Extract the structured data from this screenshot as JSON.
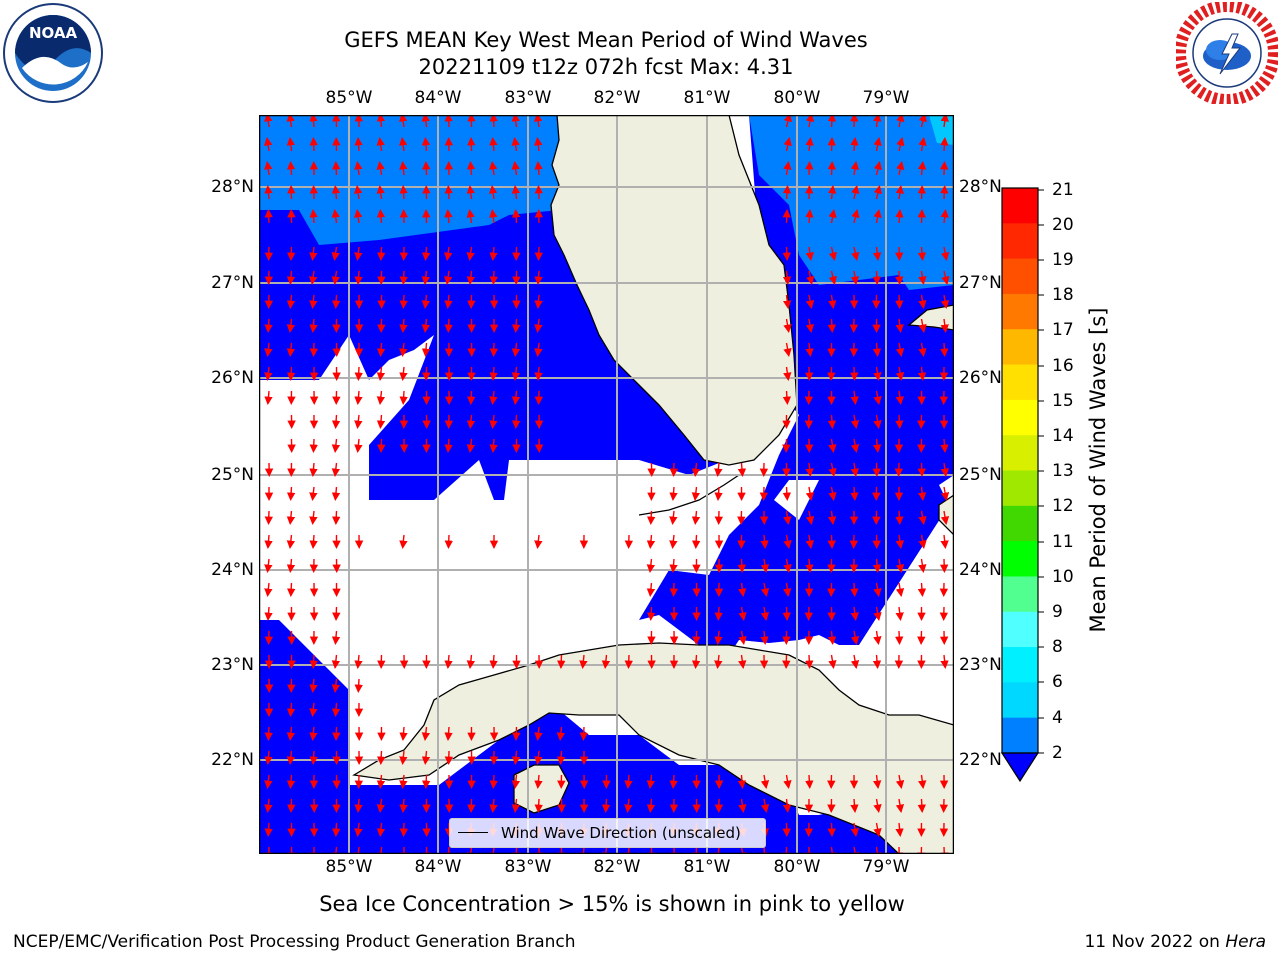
{
  "title": {
    "line1": "GEFS MEAN Key West Mean Period of Wind Waves",
    "line2": "20221109 t12z 072h fcst   Max: 4.31"
  },
  "map": {
    "lon_ticks": [
      "85°W",
      "84°W",
      "83°W",
      "82°W",
      "81°W",
      "80°W",
      "79°W"
    ],
    "lat_ticks": [
      "28°N",
      "27°N",
      "26°N",
      "25°N",
      "24°N",
      "23°N",
      "22°N"
    ],
    "colors": {
      "ocean_dark": "#0000ff",
      "ocean_mid": "#0080ff",
      "ocean_light": "#00c8ff",
      "land": "#efefdf",
      "arrow": "#ff0000",
      "grid": "#b0b0b0"
    }
  },
  "legend": {
    "label": "Wind Wave Direction (unscaled)"
  },
  "colorbar": {
    "label": "Mean Period of Wind Waves [s]",
    "ticks": [
      "21",
      "20",
      "19",
      "18",
      "17",
      "16",
      "15",
      "14",
      "13",
      "12",
      "11",
      "10",
      "9",
      "8",
      "6",
      "4",
      "2"
    ],
    "colors": [
      "#ff0000",
      "#ff2000",
      "#ff4000",
      "#ff6000",
      "#ff8000",
      "#ffa000",
      "#ffd000",
      "#ffff00",
      "#e0ff00",
      "#b0ff00",
      "#80ff00",
      "#40e000",
      "#00ff00",
      "#40ff80",
      "#a0ffe0",
      "#60ffff",
      "#00ffff",
      "#00e0ff",
      "#00c0ff",
      "#0080ff"
    ]
  },
  "subtitle": "Sea Ice Concentration > 15% is shown in pink to yellow",
  "footer": {
    "left": "NCEP/EMC/Verification Post Processing Product Generation Branch",
    "right_prefix": "11 Nov 2022 on ",
    "right_host": "Hera"
  },
  "logos": {
    "left_text": "NOAA",
    "left_icon": "noaa-logo",
    "right_icon": "nws-logo"
  }
}
